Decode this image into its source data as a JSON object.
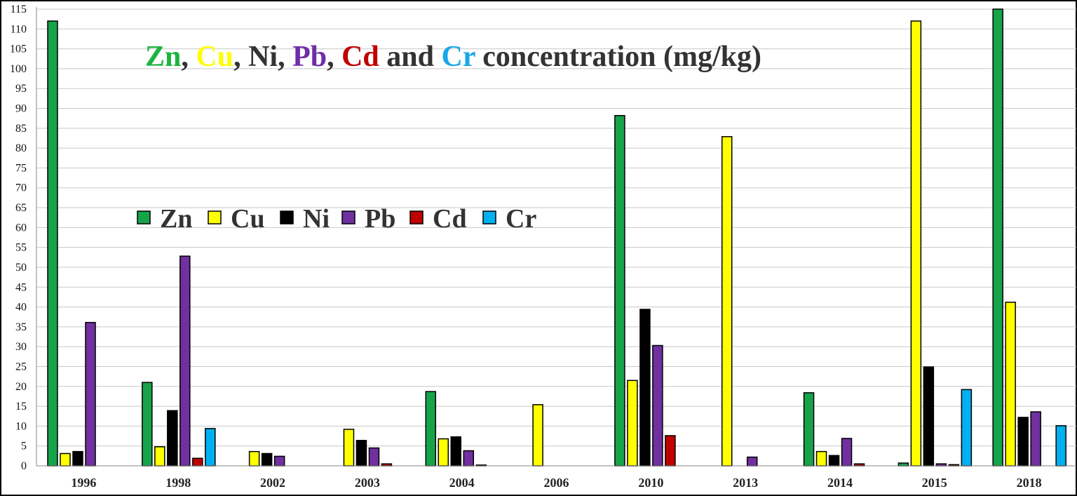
{
  "chart_data": {
    "type": "bar",
    "title_parts": [
      {
        "text": "Zn",
        "color": "#1db33f"
      },
      {
        "text": ", ",
        "color": "#333333"
      },
      {
        "text": "Cu",
        "color": "#ffff00"
      },
      {
        "text": ", ",
        "color": "#333333"
      },
      {
        "text": "Ni",
        "color": "#333333"
      },
      {
        "text": ", ",
        "color": "#333333"
      },
      {
        "text": "Pb",
        "color": "#6f2da8"
      },
      {
        "text": ", ",
        "color": "#333333"
      },
      {
        "text": "Cd",
        "color": "#c00000"
      },
      {
        "text": " and ",
        "color": "#333333"
      },
      {
        "text": "Cr",
        "color": "#1aa7e8"
      },
      {
        "text": " concentration (mg/kg)",
        "color": "#333333"
      }
    ],
    "categories": [
      "1996",
      "1998",
      "2002",
      "2003",
      "2004",
      "2006",
      "2010",
      "2013",
      "2014",
      "2015",
      "2018"
    ],
    "series": [
      {
        "name": "Zn",
        "color": "#16a34a",
        "values": [
          112,
          21,
          0,
          0,
          18.7,
          0,
          88.2,
          0,
          18.4,
          0.7,
          115
        ]
      },
      {
        "name": "Cu",
        "color": "#ffff00",
        "values": [
          3.1,
          4.8,
          3.6,
          9.2,
          6.8,
          15.4,
          21.5,
          82.9,
          3.6,
          112,
          41.2
        ]
      },
      {
        "name": "Ni",
        "color": "#000000",
        "values": [
          3.6,
          13.9,
          3.1,
          6.4,
          7.3,
          0,
          39.4,
          0,
          2.6,
          24.9,
          12.2
        ]
      },
      {
        "name": "Pb",
        "color": "#7030a0",
        "values": [
          36.1,
          52.8,
          2.4,
          4.5,
          3.8,
          0,
          30.3,
          2.2,
          6.9,
          0.5,
          13.6
        ]
      },
      {
        "name": "Cd",
        "color": "#c00000",
        "values": [
          0,
          1.9,
          0,
          0.5,
          0.2,
          0,
          7.6,
          0,
          0.5,
          0.3,
          0
        ]
      },
      {
        "name": "Cr",
        "color": "#00b0f0",
        "values": [
          0,
          9.4,
          0,
          0,
          0,
          0,
          0,
          0,
          0,
          19.2,
          10.1
        ]
      }
    ],
    "ylim": [
      0,
      115
    ],
    "ytick_step": 5,
    "yticks": [
      "0",
      "5",
      "10",
      "15",
      "20",
      "25",
      "30",
      "35",
      "40",
      "45",
      "50",
      "55",
      "60",
      "65",
      "70",
      "75",
      "80",
      "85",
      "90",
      "95",
      "100",
      "105",
      "110",
      "115"
    ],
    "grid": true,
    "legend_placement": "middle-left, horizontal"
  }
}
